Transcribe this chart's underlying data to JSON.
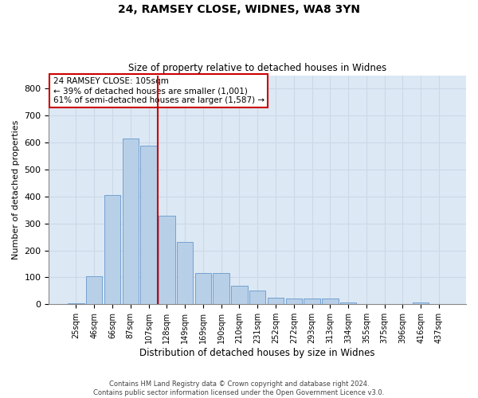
{
  "title1": "24, RAMSEY CLOSE, WIDNES, WA8 3YN",
  "title2": "Size of property relative to detached houses in Widnes",
  "xlabel": "Distribution of detached houses by size in Widnes",
  "ylabel": "Number of detached properties",
  "categories": [
    "25sqm",
    "46sqm",
    "66sqm",
    "87sqm",
    "107sqm",
    "128sqm",
    "149sqm",
    "169sqm",
    "190sqm",
    "210sqm",
    "231sqm",
    "252sqm",
    "272sqm",
    "293sqm",
    "313sqm",
    "334sqm",
    "355sqm",
    "375sqm",
    "396sqm",
    "416sqm",
    "437sqm"
  ],
  "values": [
    5,
    105,
    405,
    615,
    590,
    330,
    230,
    115,
    115,
    70,
    50,
    25,
    20,
    20,
    20,
    8,
    0,
    0,
    0,
    8,
    0
  ],
  "bar_color": "#b8cfe8",
  "bar_edge_color": "#6699cc",
  "grid_color": "#ccd8e8",
  "bg_color": "#dce8f4",
  "vline_color": "#cc0000",
  "vline_x_index": 4,
  "annotation_text": "24 RAMSEY CLOSE: 105sqm\n← 39% of detached houses are smaller (1,001)\n61% of semi-detached houses are larger (1,587) →",
  "annotation_box_color": "#cc0000",
  "footer1": "Contains HM Land Registry data © Crown copyright and database right 2024.",
  "footer2": "Contains public sector information licensed under the Open Government Licence v3.0.",
  "ylim": [
    0,
    850
  ],
  "yticks": [
    0,
    100,
    200,
    300,
    400,
    500,
    600,
    700,
    800
  ]
}
